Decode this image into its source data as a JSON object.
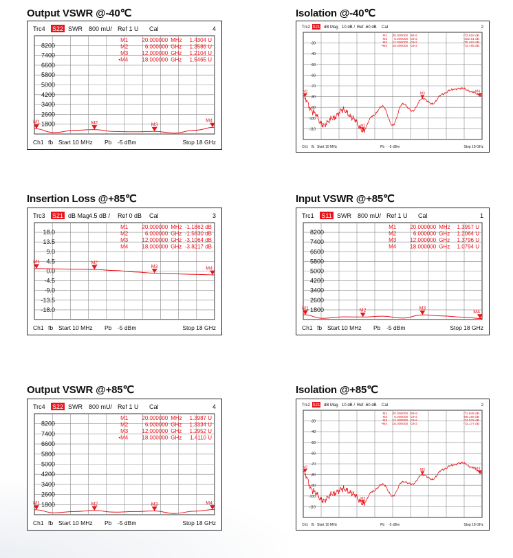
{
  "page": {
    "panels": [
      {
        "title": "Output VSWR @-40℃",
        "trace": "Trc4",
        "param": "S22",
        "format": "SWR",
        "scale": "800 mU/",
        "ref": "Ref 1 U",
        "cal": "Cal",
        "channel_index": "4",
        "footer": {
          "ch": "Ch1",
          "fb": "fb",
          "start": "Start 10 MHz",
          "pb": "Pb",
          "power": "-5 dBm",
          "stop": "Stop 18 GHz"
        },
        "markers": [
          {
            "id": "M1",
            "freq": "20.000000",
            "unit": "MHz",
            "value": "1.4304 U"
          },
          {
            "id": "M2",
            "freq": "6.000000",
            "unit": "GHz",
            "value": "1.3586 U"
          },
          {
            "id": "M3",
            "freq": "12.000000",
            "unit": "GHz",
            "value": "1.2104 U"
          },
          {
            "id": "•M4",
            "freq": "18.000000",
            "unit": "GHz",
            "value": "1.5465 U"
          }
        ],
        "marker_labels": [
          "M1",
          "M2",
          "M3",
          "M4"
        ]
      },
      {
        "title": "Isolation @-40℃",
        "trace": "Trc2",
        "param": "S21",
        "format": "dB Mag",
        "scale": "10 dB /",
        "ref": "Ref -60 dB",
        "cal": "Cal",
        "channel_index": "2",
        "footer": {
          "ch": "Ch1",
          "fb": "fb",
          "start": "Start 10 MHz",
          "pb": "Pb",
          "power": "-5 dBm",
          "stop": "Stop 18 GHz"
        },
        "markers": [
          {
            "id": "M1",
            "freq": "20.000000",
            "unit": "MHz",
            "value": "-73.918 dB"
          },
          {
            "id": "M2",
            "freq": "6.000000",
            "unit": "GHz",
            "value": "-102.51 dB"
          },
          {
            "id": "M3",
            "freq": "12.000000",
            "unit": "GHz",
            "value": "-75.463 dB"
          },
          {
            "id": "•M4",
            "freq": "18.000000",
            "unit": "GHz",
            "value": "-73.785 dB"
          }
        ],
        "marker_labels": [
          "M1",
          "M2",
          "M3",
          "M4"
        ]
      },
      {
        "title": "Insertion Loss @+85℃",
        "trace": "Trc3",
        "param": "S21",
        "format": "dB Mag",
        "scale": "4.5 dB /",
        "ref": "Ref 0 dB",
        "cal": "Cal",
        "channel_index": "3",
        "footer": {
          "ch": "Ch1",
          "fb": "fb",
          "start": "Start 10 MHz",
          "pb": "Pb",
          "power": "-5 dBm",
          "stop": "Stop 18 GHz"
        },
        "markers": [
          {
            "id": "M1",
            "freq": "20.000000",
            "unit": "MHz",
            "value": "-1.1862 dB"
          },
          {
            "id": "M2",
            "freq": "6.000000",
            "unit": "GHz",
            "value": "-1.5630 dB"
          },
          {
            "id": "M3",
            "freq": "12.000000",
            "unit": "GHz",
            "value": "-3.1064 dB"
          },
          {
            "id": "M4",
            "freq": "18.000000",
            "unit": "GHz",
            "value": "-3.8217 dB"
          }
        ],
        "marker_labels": [
          "M1",
          "M2",
          "M3",
          "M4"
        ]
      },
      {
        "title": "Input VSWR @+85℃",
        "trace": "Trc1",
        "param": "S11",
        "format": "SWR",
        "scale": "800 mU/",
        "ref": "Ref 1 U",
        "cal": "Cal",
        "channel_index": "1",
        "footer": {
          "ch": "Ch1",
          "fb": "fb",
          "start": "Start 10 MHz",
          "pb": "Pb",
          "power": "-5 dBm",
          "stop": "Stop 18 GHz"
        },
        "markers": [
          {
            "id": "M1",
            "freq": "20.000000",
            "unit": "MHz",
            "value": "1.3957 U"
          },
          {
            "id": "M2",
            "freq": "6.000000",
            "unit": "GHz",
            "value": "1.2064 U"
          },
          {
            "id": "M3",
            "freq": "12.000000",
            "unit": "GHz",
            "value": "1.3796 U"
          },
          {
            "id": "M4",
            "freq": "18.000000",
            "unit": "GHz",
            "value": "1.0794 U"
          }
        ],
        "marker_labels": [
          "M1",
          "M2",
          "M3",
          "M4"
        ]
      },
      {
        "title": "Output VSWR @+85℃",
        "trace": "Trc4",
        "param": "S22",
        "format": "SWR",
        "scale": "800 mU/",
        "ref": "Ref 1 U",
        "cal": "Cal",
        "channel_index": "4",
        "footer": {
          "ch": "Ch1",
          "fb": "fb",
          "start": "Start 10 MHz",
          "pb": "Pb",
          "power": "-5 dBm",
          "stop": "Stop 18 GHz"
        },
        "markers": [
          {
            "id": "M1",
            "freq": "20.000000",
            "unit": "MHz",
            "value": "1.3987 U"
          },
          {
            "id": "M2",
            "freq": "6.000000",
            "unit": "GHz",
            "value": "1.3334 U"
          },
          {
            "id": "M3",
            "freq": "12.000000",
            "unit": "GHz",
            "value": "1.2952 U"
          },
          {
            "id": "•M4",
            "freq": "18.000000",
            "unit": "GHz",
            "value": "1.4110 U"
          }
        ],
        "marker_labels": [
          "M1",
          "M2",
          "M3",
          "M4"
        ]
      },
      {
        "title": "Isolation @+85℃",
        "trace": "Trc2",
        "param": "S21",
        "format": "dB Mag",
        "scale": "10 dB /",
        "ref": "Ref -60 dB",
        "cal": "Cal",
        "channel_index": "2",
        "footer": {
          "ch": "Ch1",
          "fb": "fb",
          "start": "Start 10 MHz",
          "pb": "Pb",
          "power": "-5 dBm",
          "stop": "Stop 18 GHz"
        },
        "markers": [
          {
            "id": "M1",
            "freq": "20.000000",
            "unit": "MHz",
            "value": "-71.945 dB"
          },
          {
            "id": "M2",
            "freq": "6.000000",
            "unit": "GHz",
            "value": "-98.158 dB"
          },
          {
            "id": "M3",
            "freq": "12.000000",
            "unit": "GHz",
            "value": "-74.033 dB"
          },
          {
            "id": "•M4",
            "freq": "18.000000",
            "unit": "GHz",
            "value": "-73.177 dB"
          }
        ],
        "marker_labels": [
          "M1",
          "M2",
          "M3",
          "M4"
        ]
      }
    ]
  },
  "colors": {
    "trace": "#e8141b",
    "grid": "#8a8a8a",
    "text": "#111111",
    "param_bg": "#e8141b"
  },
  "chart_data": [
    {
      "type": "line",
      "x_unit": "GHz",
      "x": [
        0.01,
        2,
        4,
        6,
        8,
        10,
        12,
        14,
        16,
        18
      ],
      "series": [
        {
          "values": [
            1.43,
            1.12,
            1.3,
            1.36,
            1.2,
            1.18,
            1.21,
            1.08,
            1.3,
            1.55
          ]
        }
      ],
      "ylim": [
        1,
        9
      ],
      "ytick_labels": [
        "8200",
        "7400",
        "6600",
        "5800",
        "5000",
        "4200",
        "3400",
        "2600",
        "1800"
      ],
      "grid": true
    },
    {
      "type": "line",
      "x_unit": "GHz",
      "x": [
        0.01,
        1,
        2,
        3,
        4,
        5,
        6,
        7,
        8,
        9,
        10,
        11,
        12,
        13,
        14,
        15,
        16,
        17,
        18
      ],
      "series": [
        {
          "values": [
            -73.9,
            -87,
            -98,
            -92,
            -85,
            -92,
            -102.5,
            -90,
            -82,
            -98,
            -80,
            -86,
            -75.5,
            -80,
            -72,
            -68,
            -67,
            -70,
            -73.8
          ]
        }
      ],
      "ylim": [
        -110,
        -20
      ],
      "ytick_labels": [
        "-30",
        "-40",
        "-50",
        "-60",
        "-70",
        "-80",
        "-90",
        "-100",
        "-110"
      ],
      "grid": true
    },
    {
      "type": "line",
      "x_unit": "GHz",
      "x": [
        0.01,
        2,
        4,
        6,
        8,
        10,
        12,
        14,
        16,
        18
      ],
      "series": [
        {
          "values": [
            -1.19,
            -1.3,
            -1.45,
            -1.56,
            -2.0,
            -2.6,
            -3.11,
            -3.4,
            -3.6,
            -3.82
          ]
        }
      ],
      "ylim": [
        -22.5,
        18
      ],
      "ytick_labels": [
        "18.0",
        "13.5",
        "9.0",
        "4.5",
        "0.0",
        "-4.5",
        "-9.0",
        "-13.5",
        "-18.0"
      ],
      "grid": true
    },
    {
      "type": "line",
      "x_unit": "GHz",
      "x": [
        0.01,
        2,
        4,
        6,
        8,
        10,
        12,
        14,
        16,
        18
      ],
      "series": [
        {
          "values": [
            1.4,
            1.1,
            1.22,
            1.21,
            1.28,
            1.12,
            1.38,
            1.3,
            1.2,
            1.08
          ]
        }
      ],
      "ylim": [
        1,
        9
      ],
      "ytick_labels": [
        "8200",
        "7400",
        "6600",
        "5800",
        "5000",
        "4200",
        "3400",
        "2600",
        "1800"
      ],
      "grid": true
    },
    {
      "type": "line",
      "x_unit": "GHz",
      "x": [
        0.01,
        2,
        4,
        6,
        8,
        10,
        12,
        14,
        16,
        18
      ],
      "series": [
        {
          "values": [
            1.4,
            1.15,
            1.25,
            1.33,
            1.2,
            1.25,
            1.3,
            1.1,
            1.28,
            1.41
          ]
        }
      ],
      "ylim": [
        1,
        9
      ],
      "ytick_labels": [
        "8200",
        "7400",
        "6600",
        "5800",
        "5000",
        "4200",
        "3400",
        "2600",
        "1800"
      ],
      "grid": true
    },
    {
      "type": "line",
      "x_unit": "GHz",
      "x": [
        0.01,
        1,
        2,
        3,
        4,
        5,
        6,
        7,
        8,
        9,
        10,
        11,
        12,
        13,
        14,
        15,
        16,
        17,
        18
      ],
      "series": [
        {
          "values": [
            -71.9,
            -88,
            -96,
            -90,
            -86,
            -90,
            -98.2,
            -88,
            -82,
            -92,
            -80,
            -82,
            -74,
            -78,
            -70,
            -66,
            -64,
            -68,
            -73.2
          ]
        }
      ],
      "ylim": [
        -110,
        -20
      ],
      "ytick_labels": [
        "-30",
        "-40",
        "-50",
        "-60",
        "-70",
        "-80",
        "-90",
        "-100",
        "-110"
      ],
      "grid": true
    }
  ]
}
